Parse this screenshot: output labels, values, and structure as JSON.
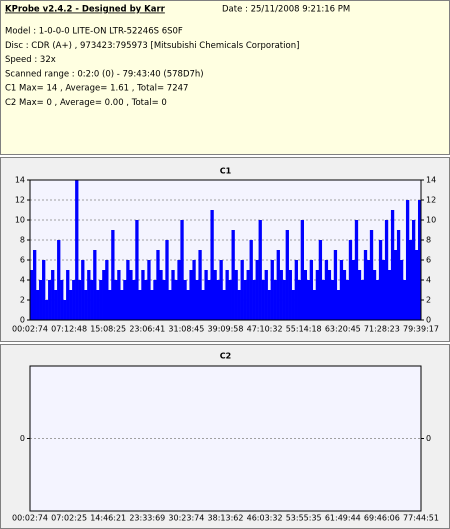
{
  "header": {
    "title": "KProbe v2.4.2 - Designed by Karr",
    "date": "Date : 25/11/2008 9:21:16 PM",
    "lines": [
      "Model : 1-0-0-0 LITE-ON LTR-52246S      6S0F",
      "Disc : CDR (A+) , 973423:795973 [Mitsubishi Chemicals Corporation]",
      "Speed : 32x",
      "Scanned range : 0:2:0 (0) - 79:43:40 (578D7h)",
      "C1 Max= 14 , Average= 1.61 , Total= 7247",
      "C2 Max= 0 , Average= 0.00 , Total= 0"
    ]
  },
  "chart_data": [
    {
      "type": "bar",
      "title": "C1",
      "color": "#0000ff",
      "ylim": [
        0,
        14
      ],
      "yticks": [
        0,
        2,
        4,
        6,
        8,
        10,
        12,
        14
      ],
      "grid": true,
      "x_labels": [
        "00:02:74",
        "07:12:48",
        "15:08:25",
        "23:06:41",
        "31:08:45",
        "39:09:58",
        "47:10:32",
        "55:14:18",
        "63:20:45",
        "71:28:23",
        "79:39:17"
      ],
      "values": [
        5,
        7,
        3,
        4,
        6,
        2,
        4,
        5,
        3,
        8,
        4,
        2,
        5,
        3,
        4,
        14,
        4,
        6,
        3,
        5,
        4,
        7,
        3,
        4,
        5,
        6,
        3,
        9,
        4,
        5,
        3,
        4,
        6,
        5,
        4,
        10,
        3,
        5,
        4,
        6,
        3,
        4,
        7,
        5,
        4,
        8,
        3,
        5,
        4,
        6,
        10,
        4,
        3,
        5,
        6,
        4,
        7,
        3,
        5,
        4,
        11,
        5,
        4,
        6,
        3,
        5,
        4,
        9,
        5,
        3,
        6,
        4,
        5,
        8,
        4,
        6,
        10,
        4,
        5,
        3,
        6,
        4,
        7,
        5,
        4,
        9,
        5,
        3,
        6,
        4,
        10,
        5,
        4,
        6,
        3,
        5,
        8,
        4,
        6,
        5,
        4,
        7,
        3,
        6,
        5,
        4,
        8,
        6,
        10,
        5,
        4,
        7,
        6,
        9,
        5,
        4,
        8,
        6,
        10,
        5,
        11,
        7,
        9,
        6,
        4,
        12,
        8,
        10,
        7,
        12
      ]
    },
    {
      "type": "bar",
      "title": "C2",
      "color": "#0000ff",
      "ylim": [
        -1,
        1
      ],
      "yticks": [
        0
      ],
      "grid": true,
      "x_labels": [
        "00:02:74",
        "07:02:25",
        "14:46:21",
        "23:33:69",
        "30:23:74",
        "38:13:62",
        "46:03:32",
        "53:55:35",
        "61:49:44",
        "69:46:06",
        "77:44:51"
      ],
      "values": [
        0,
        0,
        0,
        0,
        0,
        0,
        0,
        0,
        0,
        0,
        0,
        0,
        0,
        0,
        0,
        0,
        0,
        0,
        0,
        0,
        0,
        0,
        0,
        0,
        0,
        0,
        0,
        0,
        0,
        0
      ]
    }
  ]
}
